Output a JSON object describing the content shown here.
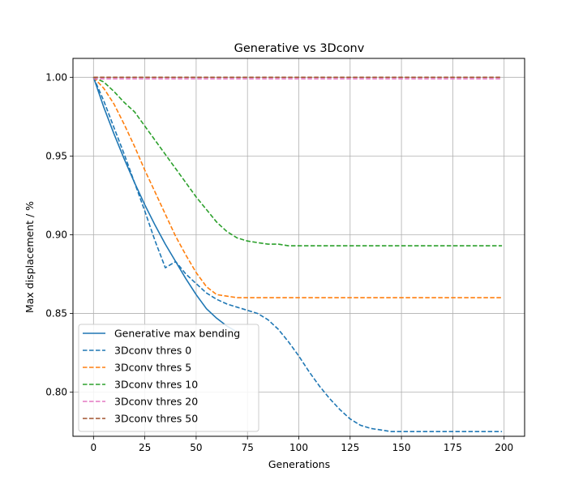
{
  "chart_data": {
    "type": "line",
    "title": "Generative vs 3Dconv",
    "xlabel": "Generations",
    "ylabel": "Max displacement / %",
    "xlim": [
      -10,
      210
    ],
    "ylim": [
      0.772,
      1.012
    ],
    "xticks": [
      0,
      25,
      50,
      75,
      100,
      125,
      150,
      175,
      200
    ],
    "yticks": [
      0.8,
      0.85,
      0.9,
      0.95,
      1.0
    ],
    "xtick_labels": [
      "0",
      "25",
      "50",
      "75",
      "100",
      "125",
      "150",
      "175",
      "200"
    ],
    "ytick_labels": [
      "0.80",
      "0.85",
      "0.90",
      "0.95",
      "1.00"
    ],
    "grid": true,
    "legend_position": "lower-left",
    "series": [
      {
        "name": "Generative max bending",
        "color": "#1f77b4",
        "dash": "solid",
        "x": [
          0,
          5,
          10,
          15,
          20,
          25,
          30,
          35,
          40,
          45,
          50,
          55,
          60,
          65,
          69
        ],
        "y": [
          1.0,
          0.981,
          0.964,
          0.948,
          0.933,
          0.919,
          0.906,
          0.894,
          0.883,
          0.872,
          0.862,
          0.853,
          0.847,
          0.842,
          0.839
        ]
      },
      {
        "name": "3Dconv thres 0",
        "color": "#1f77b4",
        "dash": "dashed",
        "x": [
          0,
          5,
          10,
          15,
          20,
          25,
          30,
          35,
          40,
          45,
          50,
          55,
          60,
          65,
          70,
          75,
          80,
          85,
          90,
          95,
          100,
          105,
          110,
          115,
          120,
          125,
          130,
          135,
          140,
          145,
          150,
          155,
          160,
          165,
          170,
          175,
          180,
          185,
          190,
          195,
          199
        ],
        "y": [
          1.0,
          0.985,
          0.968,
          0.951,
          0.933,
          0.915,
          0.896,
          0.879,
          0.883,
          0.875,
          0.869,
          0.863,
          0.859,
          0.856,
          0.854,
          0.852,
          0.85,
          0.846,
          0.84,
          0.832,
          0.823,
          0.813,
          0.804,
          0.796,
          0.789,
          0.783,
          0.779,
          0.777,
          0.776,
          0.775,
          0.775,
          0.775,
          0.775,
          0.775,
          0.775,
          0.775,
          0.775,
          0.775,
          0.775,
          0.775,
          0.775
        ]
      },
      {
        "name": "3Dconv thres 5",
        "color": "#ff7f0e",
        "dash": "dashed",
        "x": [
          0,
          5,
          10,
          15,
          20,
          25,
          30,
          35,
          40,
          45,
          50,
          55,
          60,
          65,
          70,
          75,
          80,
          85,
          90,
          95,
          100,
          110,
          120,
          130,
          140,
          150,
          160,
          170,
          180,
          190,
          199
        ],
        "y": [
          1.0,
          0.993,
          0.983,
          0.97,
          0.956,
          0.941,
          0.927,
          0.913,
          0.899,
          0.887,
          0.876,
          0.867,
          0.862,
          0.861,
          0.86,
          0.86,
          0.86,
          0.86,
          0.86,
          0.86,
          0.86,
          0.86,
          0.86,
          0.86,
          0.86,
          0.86,
          0.86,
          0.86,
          0.86,
          0.86,
          0.86
        ]
      },
      {
        "name": "3Dconv thres 10",
        "color": "#2ca02c",
        "dash": "dashed",
        "x": [
          0,
          5,
          10,
          15,
          20,
          25,
          30,
          35,
          40,
          45,
          50,
          55,
          60,
          65,
          70,
          75,
          80,
          85,
          90,
          95,
          100,
          105,
          110,
          120,
          130,
          140,
          150,
          160,
          170,
          180,
          190,
          199
        ],
        "y": [
          1.0,
          0.997,
          0.991,
          0.984,
          0.978,
          0.969,
          0.96,
          0.951,
          0.942,
          0.933,
          0.924,
          0.916,
          0.908,
          0.902,
          0.898,
          0.896,
          0.895,
          0.894,
          0.894,
          0.893,
          0.893,
          0.893,
          0.893,
          0.893,
          0.893,
          0.893,
          0.893,
          0.893,
          0.893,
          0.893,
          0.893,
          0.893
        ]
      },
      {
        "name": "3Dconv thres 20",
        "color": "#e377c2",
        "dash": "dashed",
        "x": [
          0,
          50,
          100,
          150,
          199
        ],
        "y": [
          0.999,
          0.999,
          0.999,
          0.999,
          0.999
        ]
      },
      {
        "name": "3Dconv thres 50",
        "color": "#a0522d",
        "dash": "dashed",
        "x": [
          0,
          50,
          100,
          150,
          199
        ],
        "y": [
          1.0,
          1.0,
          1.0,
          1.0,
          1.0
        ]
      }
    ]
  }
}
